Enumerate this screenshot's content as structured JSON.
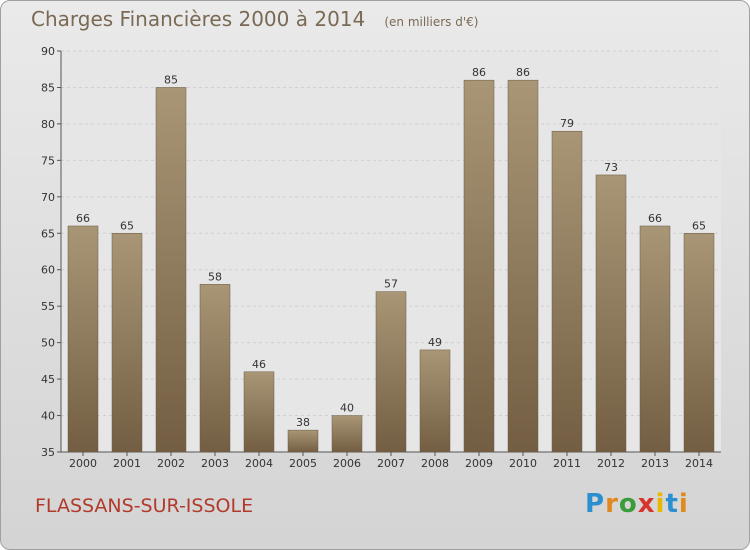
{
  "chart_data": {
    "type": "bar",
    "title": "Charges Financières 2000 à 2014",
    "subtitle": "(en milliers d'€)",
    "categories": [
      "2000",
      "2001",
      "2002",
      "2003",
      "2004",
      "2005",
      "2006",
      "2007",
      "2008",
      "2009",
      "2010",
      "2011",
      "2012",
      "2013",
      "2014"
    ],
    "values": [
      66,
      65,
      85,
      58,
      46,
      38,
      40,
      57,
      49,
      86,
      86,
      79,
      73,
      66,
      65
    ],
    "ylim": [
      35,
      90
    ],
    "yticks": [
      35,
      40,
      45,
      50,
      55,
      60,
      65,
      70,
      75,
      80,
      85,
      90
    ],
    "grid": true,
    "bar_color": "#8f7a5c"
  },
  "footer": {
    "commune": "FLASSANS-SUR-ISSOLE",
    "logo": "Proxiti"
  }
}
